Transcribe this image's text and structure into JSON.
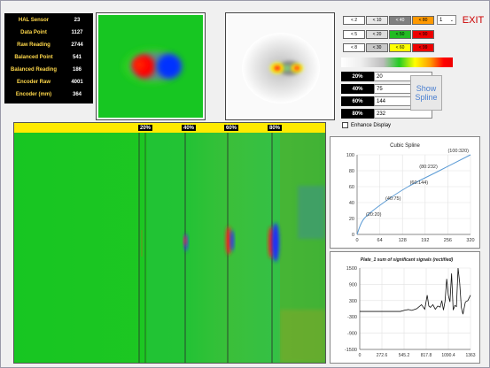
{
  "stats": [
    {
      "label": "HAL Sensor",
      "value": "23"
    },
    {
      "label": "Data Point",
      "value": "1127"
    },
    {
      "label": "Raw Reading",
      "value": "2744"
    },
    {
      "label": "Balanced Point",
      "value": "541"
    },
    {
      "label": "Balanced Reading",
      "value": "186"
    },
    {
      "label": "Encoder Raw",
      "value": "4001"
    },
    {
      "label": "Encoder (mm)",
      "value": "364"
    }
  ],
  "swatches": [
    [
      {
        "label": "< 2",
        "color": "#ffffff"
      },
      {
        "label": "< 10",
        "color": "#e8e8e8"
      },
      {
        "label": "< 40",
        "color": "#808080"
      },
      {
        "label": "< 80",
        "color": "#ff9900"
      }
    ],
    [
      {
        "label": "< 5",
        "color": "#ffffff"
      },
      {
        "label": "< 20",
        "color": "#dddddd"
      },
      {
        "label": "< 50",
        "color": "#22bb22"
      },
      {
        "label": "< 90",
        "color": "#ee0000"
      }
    ],
    [
      {
        "label": "< 8",
        "color": "#ffffff"
      },
      {
        "label": "< 30",
        "color": "#c8c8c8"
      },
      {
        "label": "< 60",
        "color": "#ffff00"
      },
      {
        "label": "< 99",
        "color": "#ee0000"
      }
    ]
  ],
  "select_value": "1",
  "exit_label": "EXIT",
  "thresholds": [
    {
      "label": "20%",
      "value": "20"
    },
    {
      "label": "40%",
      "value": "75"
    },
    {
      "label": "60%",
      "value": "144"
    },
    {
      "label": "80%",
      "value": "232"
    }
  ],
  "show_spline_label": "Show Spline",
  "enhance_label": "Enhance Display",
  "enhance_checked": false,
  "markers": [
    "20%",
    "40%",
    "60%",
    "80%"
  ],
  "colors": {
    "stat_label": "#ffd84a",
    "marker_bar": "#ffea00",
    "accent": "#cc0000",
    "spline": "#5b9bd5"
  },
  "chart_data": [
    {
      "type": "line",
      "title": "Cubic Spline",
      "x": [
        0,
        20,
        40,
        60,
        80,
        100
      ],
      "points": [
        {
          "x": 0,
          "y": 0
        },
        {
          "x": 20,
          "y": 20
        },
        {
          "x": 75,
          "y": 40
        },
        {
          "x": 144,
          "y": 60
        },
        {
          "x": 232,
          "y": 80
        },
        {
          "x": 320,
          "y": 100
        }
      ],
      "point_labels": [
        "",
        "(20:20)",
        "(40:75)",
        "(60:144)",
        "(80:232)",
        "(100:320)"
      ],
      "xticks": [
        0,
        64,
        128,
        192,
        256,
        320
      ],
      "yticks": [
        0,
        20,
        40,
        60,
        80,
        100
      ],
      "xlim": [
        0,
        320
      ],
      "ylim": [
        0,
        100
      ],
      "grid": true
    },
    {
      "type": "line",
      "title": "Plate_1 sum of significant signals (rectified)",
      "xticks": [
        "0",
        "272.6",
        "545.2",
        "817.8",
        "1090.4",
        "1363"
      ],
      "yticks": [
        1500,
        900,
        300,
        -300,
        -900,
        -1500
      ],
      "xlim": [
        0,
        1363
      ],
      "ylim": [
        -1500,
        1500
      ],
      "grid": true,
      "series": [
        {
          "x": [
            0,
            100,
            200,
            300,
            400,
            500,
            560,
            600,
            640,
            700,
            760,
            800,
            830,
            850,
            870,
            900,
            930,
            960,
            990,
            1010,
            1030,
            1050,
            1070,
            1090,
            1110,
            1130,
            1150,
            1170,
            1190,
            1210,
            1230,
            1250,
            1270,
            1300,
            1330,
            1363
          ],
          "y": [
            -100,
            -100,
            -100,
            -100,
            -100,
            -100,
            -50,
            -30,
            -60,
            0,
            150,
            -20,
            500,
            100,
            50,
            150,
            -20,
            100,
            60,
            300,
            -50,
            280,
            1100,
            500,
            250,
            1300,
            -50,
            120,
            80,
            1500,
            950,
            50,
            -200,
            250,
            300,
            500
          ]
        }
      ]
    }
  ]
}
